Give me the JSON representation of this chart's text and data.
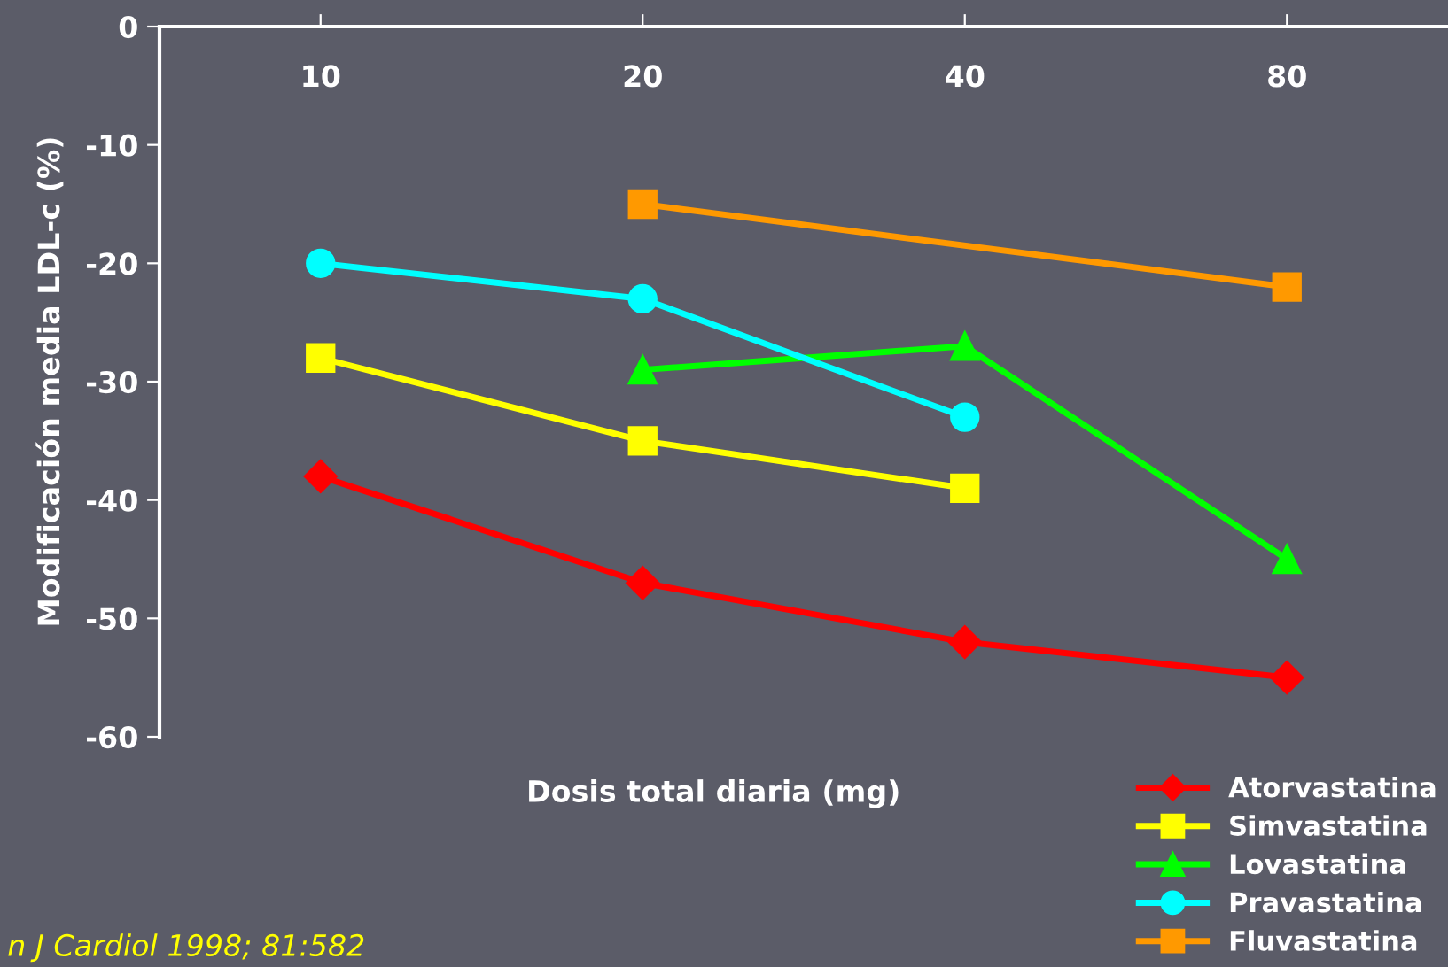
{
  "chart_data": {
    "type": "line",
    "categories": [
      "10",
      "20",
      "40",
      "80"
    ],
    "xlabel": "Dosis total diaria (mg)",
    "ylabel": "Modificación media LDL-c (%)",
    "ylim": [
      -60,
      0
    ],
    "yticks": [
      -60,
      -50,
      -40,
      -30,
      -20,
      -10,
      0
    ],
    "grid": false,
    "legend": "bottom right",
    "line_style": "solid",
    "annotations": [
      "n J Cardiol 1998; 81:582"
    ],
    "series": [
      {
        "name": "Atorvastatina",
        "color": "#ff0000",
        "marker": "diamond",
        "values": [
          -38,
          -47,
          -52,
          -55
        ]
      },
      {
        "name": "Simvastatina",
        "color": "#ffff00",
        "marker": "square",
        "values": [
          -28,
          -35,
          -39,
          null
        ]
      },
      {
        "name": "Lovastatina",
        "color": "#00ff00",
        "marker": "triangle",
        "values": [
          null,
          -29,
          -27,
          -45
        ]
      },
      {
        "name": "Pravastatina",
        "color": "#00ffff",
        "marker": "circle",
        "values": [
          -20,
          -23,
          -33,
          null
        ]
      },
      {
        "name": "Fluvastatina",
        "color": "#ff9900",
        "marker": "square",
        "values": [
          null,
          -15,
          null,
          -22
        ]
      }
    ]
  }
}
